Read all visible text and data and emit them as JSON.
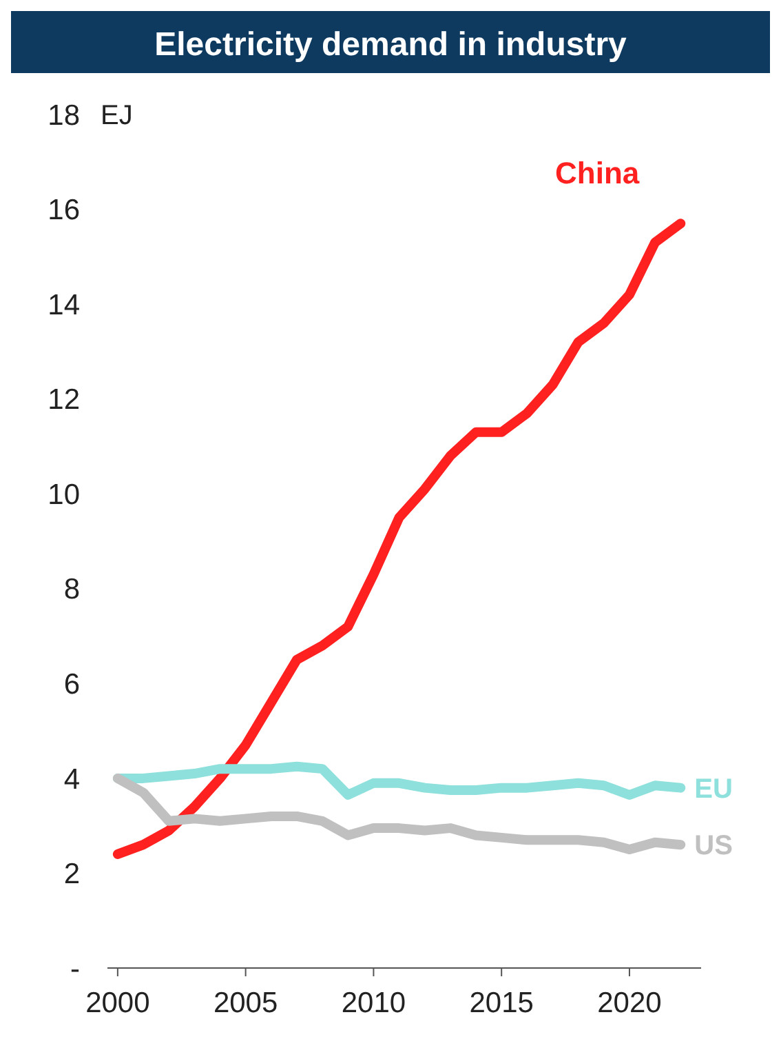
{
  "chart_data": {
    "type": "line",
    "title": "Electricity demand in industry",
    "ylabel": "EJ",
    "x": [
      2000,
      2001,
      2002,
      2003,
      2004,
      2005,
      2006,
      2007,
      2008,
      2009,
      2010,
      2011,
      2012,
      2013,
      2014,
      2015,
      2016,
      2017,
      2018,
      2019,
      2020,
      2021,
      2022
    ],
    "series": [
      {
        "name": "China",
        "color": "#ff2020",
        "values": [
          2.4,
          2.6,
          2.9,
          3.4,
          4.0,
          4.7,
          5.6,
          6.5,
          6.8,
          7.2,
          8.3,
          9.5,
          10.1,
          10.8,
          11.3,
          11.3,
          11.7,
          12.3,
          13.2,
          13.6,
          14.2,
          15.3,
          15.7
        ]
      },
      {
        "name": "EU",
        "color": "#8de0dc",
        "values": [
          4.0,
          4.0,
          4.05,
          4.1,
          4.2,
          4.2,
          4.2,
          4.25,
          4.2,
          3.65,
          3.9,
          3.9,
          3.8,
          3.75,
          3.75,
          3.8,
          3.8,
          3.85,
          3.9,
          3.85,
          3.65,
          3.85,
          3.8
        ]
      },
      {
        "name": "US",
        "color": "#c0c0c0",
        "values": [
          4.0,
          3.7,
          3.1,
          3.15,
          3.1,
          3.15,
          3.2,
          3.2,
          3.1,
          2.8,
          2.95,
          2.95,
          2.9,
          2.95,
          2.8,
          2.75,
          2.7,
          2.7,
          2.7,
          2.65,
          2.5,
          2.65,
          2.6
        ]
      }
    ],
    "xlim": [
      1999.6,
      2022.8
    ],
    "xticks": [
      2000,
      2005,
      2010,
      2015,
      2020
    ],
    "ylim": [
      0,
      18
    ],
    "yticks": [
      {
        "value": 0,
        "label": "-"
      },
      2,
      4,
      6,
      8,
      10,
      12,
      14,
      16,
      18
    ],
    "grid": false,
    "marker": "none",
    "line_style": "solid"
  }
}
